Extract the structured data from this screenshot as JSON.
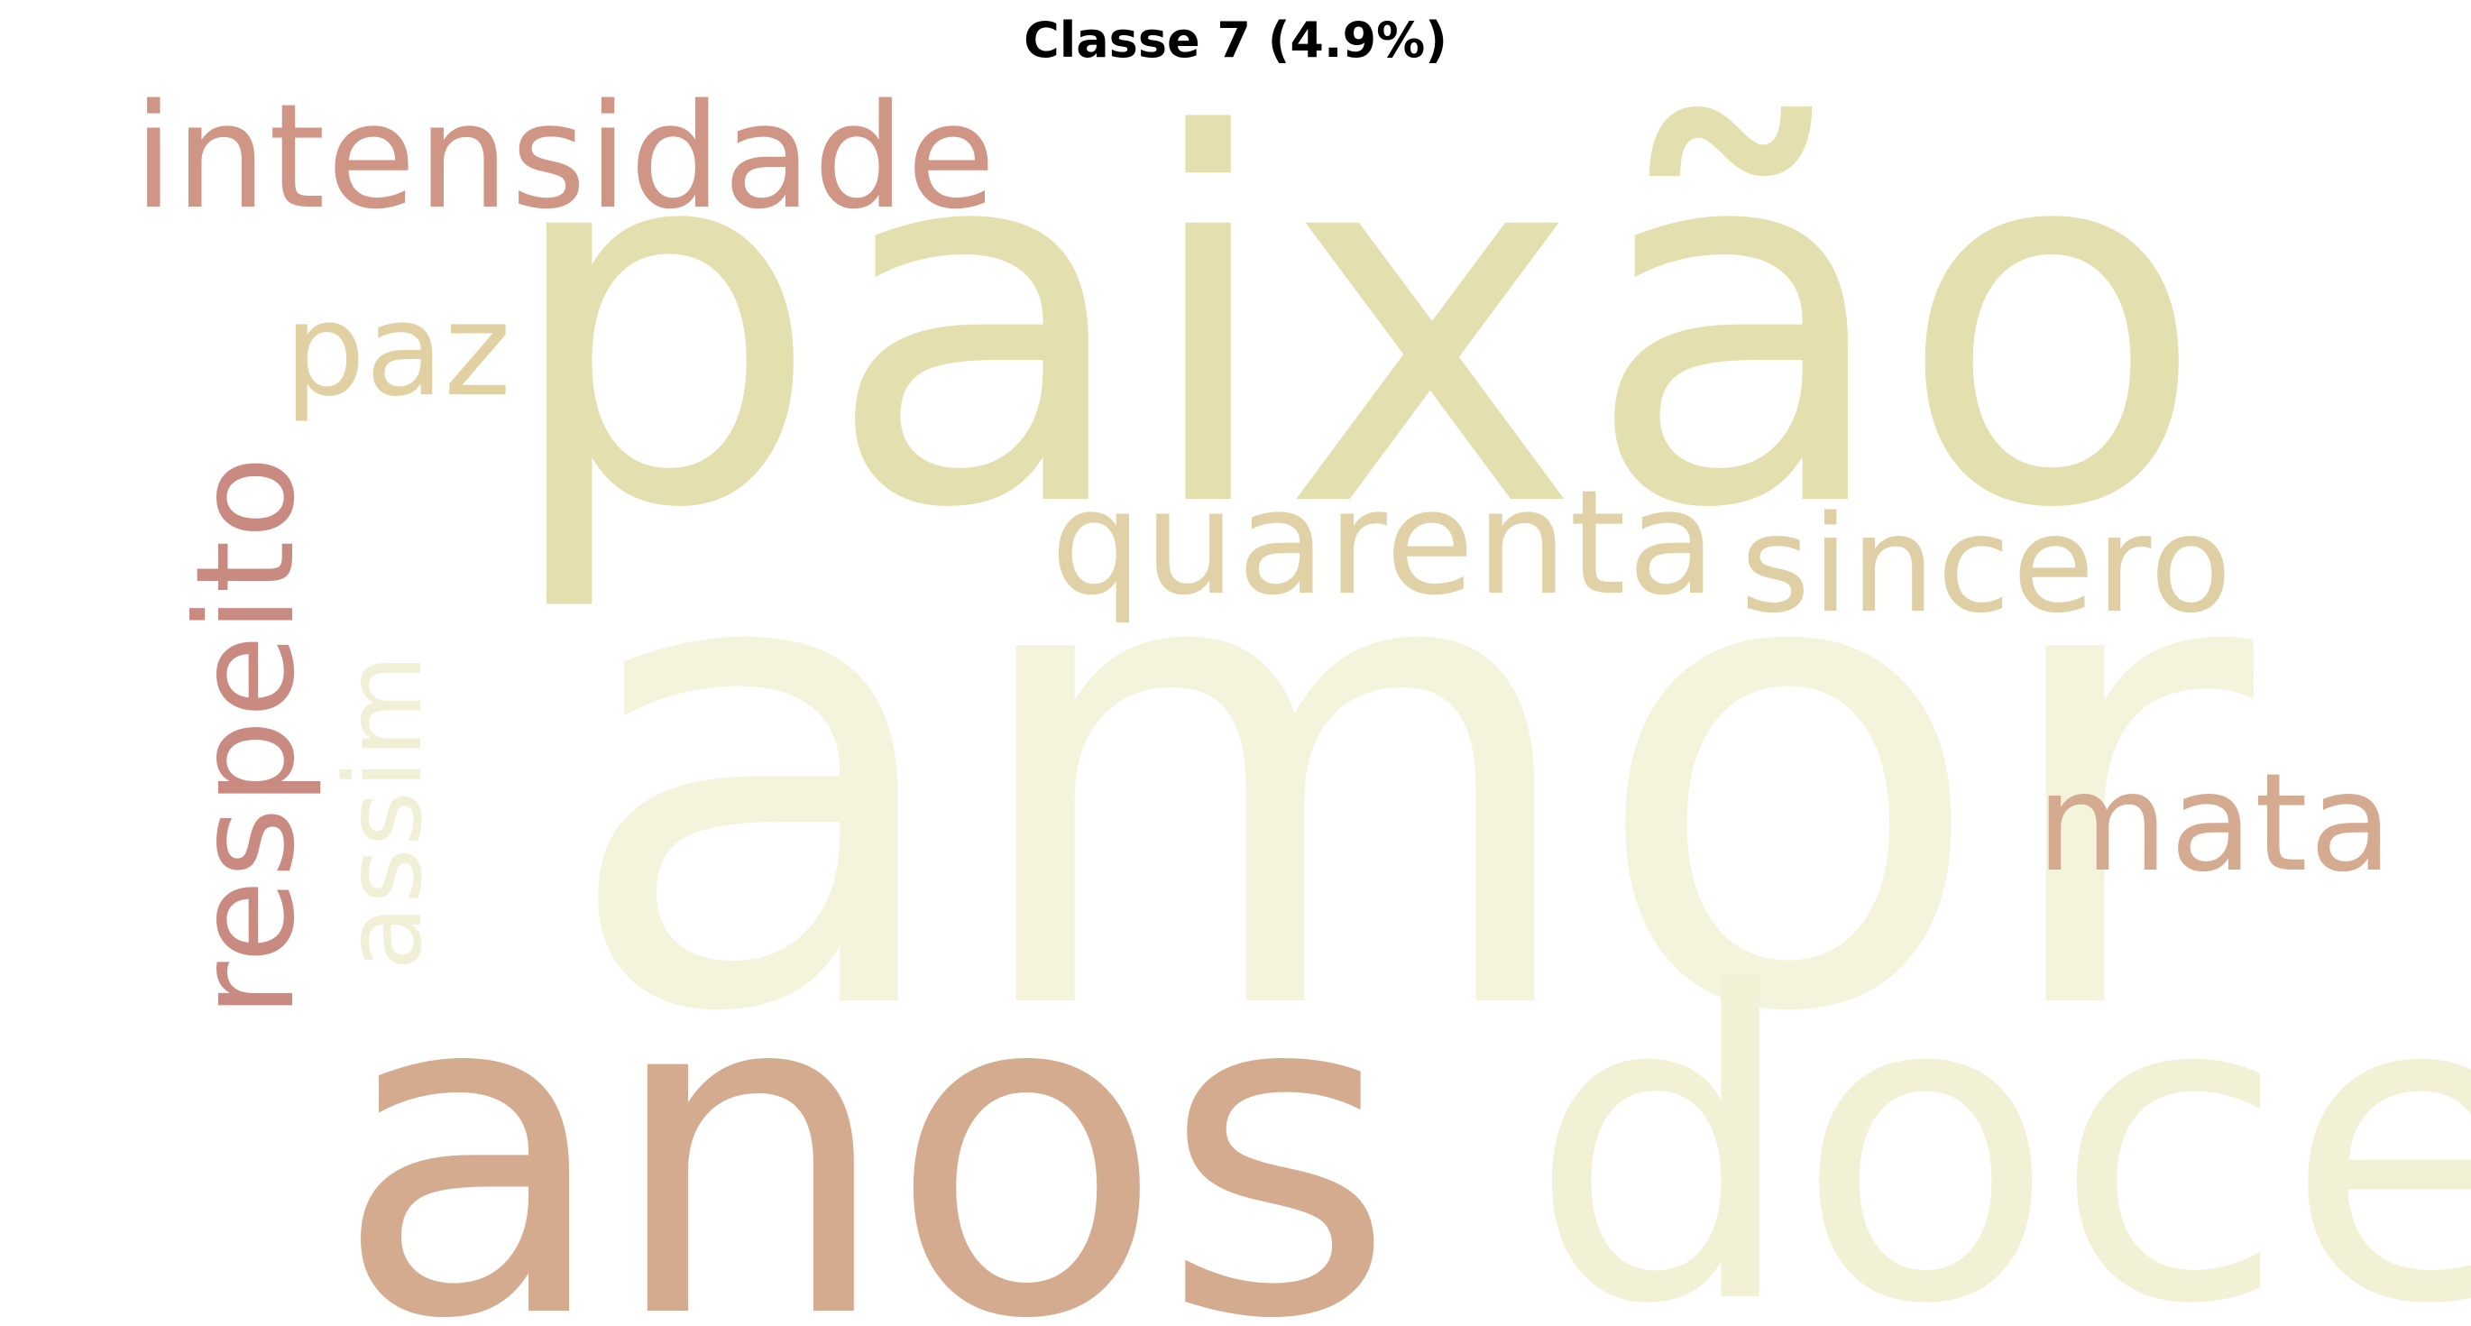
{
  "title": "Classe 7 (4.9%)",
  "words": {
    "paixao": {
      "text": "paixão",
      "color": "#e4dfaf"
    },
    "amor": {
      "text": "amor",
      "color": "#f4f3dc"
    },
    "anos": {
      "text": "anos",
      "color": "#d4ab8e"
    },
    "doce": {
      "text": "doce",
      "color": "#f2f1d6"
    },
    "intensidade": {
      "text": "intensidade",
      "color": "#cf9686"
    },
    "paz": {
      "text": "paz",
      "color": "#e1d1a2"
    },
    "quarenta": {
      "text": "quarenta",
      "color": "#e1d1a6"
    },
    "sincero": {
      "text": "sincero",
      "color": "#dfcfa4"
    },
    "mata": {
      "text": "mata",
      "color": "#d4ab90"
    },
    "respeito": {
      "text": "respeito",
      "color": "#c98a82"
    },
    "assim": {
      "text": "assim",
      "color": "#f1efd6"
    }
  }
}
